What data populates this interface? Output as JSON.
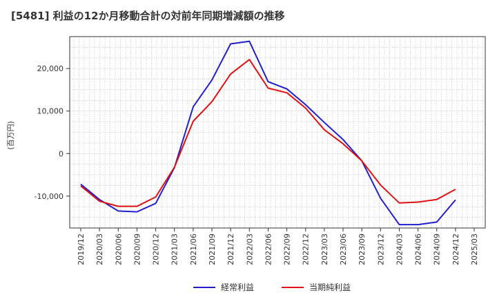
{
  "chart_data": {
    "type": "line",
    "title": "[5481]  利益の12か月移動合計の対前年同期増減額の推移",
    "ylabel": "(百万円)",
    "xlabel": "",
    "ylim": [
      -17500,
      27500
    ],
    "yticks": [
      20000,
      10000,
      0,
      -10000
    ],
    "ytick_labels": [
      "20,000",
      "10,000",
      "0",
      "-10,000"
    ],
    "xticks": [
      "2019/12",
      "2020/03",
      "2020/06",
      "2020/09",
      "2020/12",
      "2021/03",
      "2021/06",
      "2021/09",
      "2021/12",
      "2022/03",
      "2022/06",
      "2022/09",
      "2022/12",
      "2023/03",
      "2023/06",
      "2023/09",
      "2023/12",
      "2024/03",
      "2024/06",
      "2024/09",
      "2024/12",
      "2025/03"
    ],
    "series": [
      {
        "name": "経常利益",
        "color": "#1f1fcc",
        "values": [
          -7200,
          -10800,
          -13500,
          -13700,
          -11700,
          -3300,
          11000,
          17300,
          25800,
          26400,
          16900,
          15200,
          11500,
          7300,
          3300,
          -1700,
          -10500,
          -16700,
          -16700,
          -16100,
          -10900
        ]
      },
      {
        "name": "当期純利益",
        "color": "#e01010",
        "values": [
          -7600,
          -11200,
          -12400,
          -12400,
          -10200,
          -3200,
          7600,
          12200,
          18700,
          22100,
          15400,
          14300,
          10700,
          5600,
          2300,
          -1700,
          -7400,
          -11600,
          -11400,
          -10800,
          -8400
        ]
      }
    ]
  }
}
